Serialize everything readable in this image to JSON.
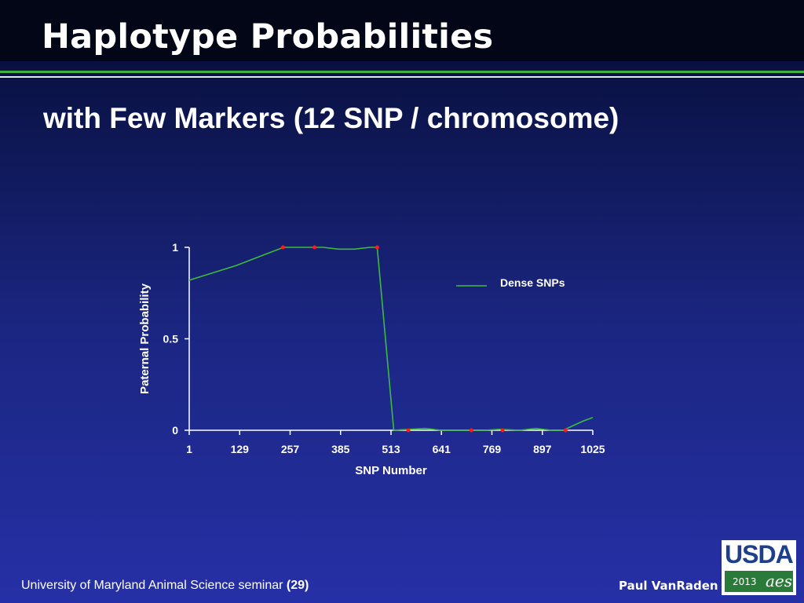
{
  "slide": {
    "title": "Haplotype Probabilities",
    "subtitle": "with Few Markers (12 SNP / chromosome)",
    "footer_left_text": "University of Maryland Animal Science seminar ",
    "footer_left_page": "(29)",
    "footer_right": "Paul VanRaden",
    "logo_text": "USDA",
    "logo_year": "2013",
    "logo_mark": "aes"
  },
  "colors": {
    "line": "#3dbb3d",
    "marker": "#ff1a1a",
    "axis": "#ffffff"
  },
  "chart_data": {
    "type": "line",
    "title": "",
    "xlabel": "SNP Number",
    "ylabel": "Paternal Probability",
    "xlim": [
      1,
      1025
    ],
    "ylim": [
      0,
      1
    ],
    "x_ticks": [
      1,
      129,
      257,
      385,
      513,
      641,
      769,
      897,
      1025
    ],
    "y_ticks": [
      0,
      0.5,
      1
    ],
    "y_tick_labels": [
      "0",
      "0.5",
      "1"
    ],
    "grid": false,
    "legend_position": "top-right",
    "series": [
      {
        "name": "Dense SNPs",
        "x": [
          1,
          60,
          120,
          180,
          240,
          300,
          340,
          380,
          420,
          460,
          478,
          520,
          560,
          600,
          640,
          680,
          710,
          750,
          790,
          840,
          880,
          920,
          950,
          980,
          1000,
          1025
        ],
        "y": [
          0.82,
          0.86,
          0.9,
          0.95,
          1.0,
          1.0,
          1.0,
          0.99,
          0.99,
          1.0,
          1.0,
          0.0,
          0.005,
          0.01,
          0.0,
          0.0,
          0.0,
          0.0,
          0.005,
          0.0,
          0.01,
          0.0,
          0.0,
          0.03,
          0.05,
          0.07
        ]
      }
    ],
    "markers": {
      "x": [
        239,
        319,
        478,
        557,
        717,
        796,
        956
      ],
      "y": [
        1,
        1,
        1,
        0,
        0,
        0,
        0
      ]
    }
  }
}
